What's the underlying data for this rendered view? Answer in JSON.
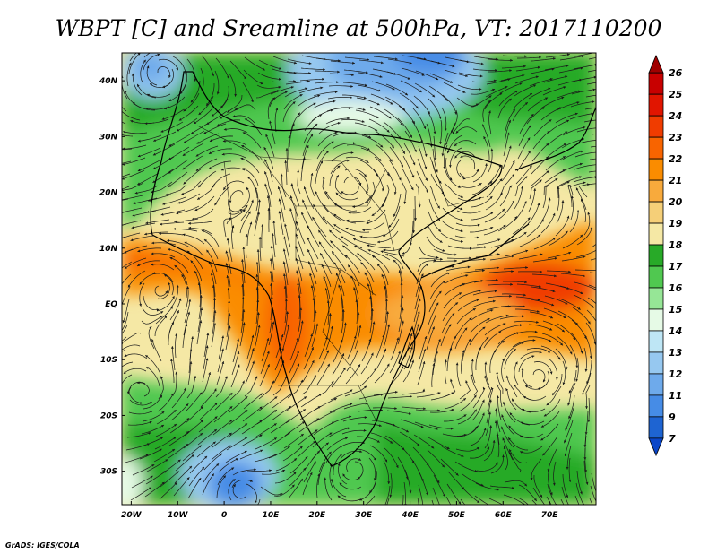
{
  "title": "WBPT [C] and Sreamline at 500hPa, VT: 2017110200",
  "credit": "GrADS: IGES/COLA",
  "map": {
    "lat_labels": [
      "40N",
      "30N",
      "20N",
      "10N",
      "EQ",
      "10S",
      "20S",
      "30S"
    ],
    "lat_values": [
      40,
      30,
      20,
      10,
      0,
      -10,
      -20,
      -30
    ],
    "lon_labels": [
      "20W",
      "10W",
      "0",
      "10E",
      "20E",
      "30E",
      "40E",
      "50E",
      "60E",
      "70E"
    ],
    "lon_values": [
      -20,
      -10,
      0,
      10,
      20,
      30,
      40,
      50,
      60,
      70
    ],
    "lon_range": [
      -22,
      80
    ],
    "lat_range": [
      -36,
      45
    ]
  },
  "colorbar": {
    "labels": [
      "26",
      "25",
      "24",
      "23",
      "22",
      "21",
      "20",
      "19",
      "18",
      "17",
      "16",
      "15",
      "14",
      "13",
      "12",
      "11",
      "9",
      "7"
    ],
    "colors": [
      "#a00000",
      "#c80000",
      "#e11500",
      "#f03c00",
      "#f86400",
      "#fa8c00",
      "#f8aa3c",
      "#f5cf78",
      "#f5e8a5",
      "#28aa28",
      "#50c850",
      "#96e696",
      "#e6fae6",
      "#bee6f5",
      "#96c8f0",
      "#6eaaeb",
      "#468ce6",
      "#1e64d2",
      "#0a46c8"
    ]
  }
}
